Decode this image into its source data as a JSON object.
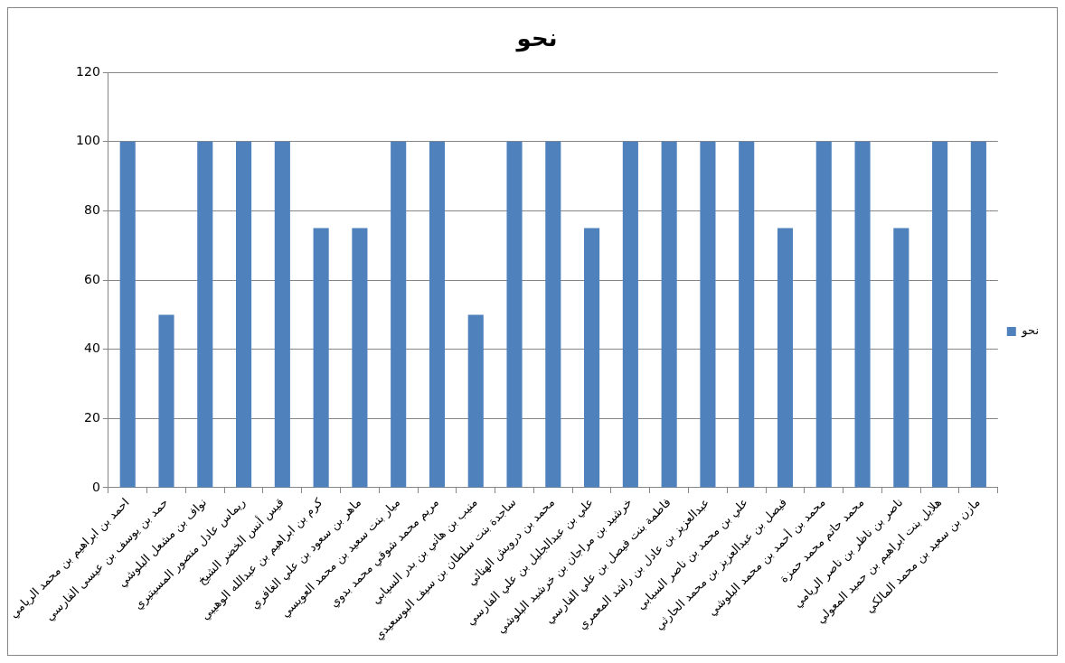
{
  "chart_data": {
    "type": "bar",
    "title": "نحو",
    "categories": [
      "احمد بن ابراهيم بن محمد الريامي",
      "حمد بن يوسف بن عيسى الفارسي",
      "نواف بن مشعل البلوشي",
      "ريماس عادل منصور المسيتيري",
      "قيس أنس الخضر الشيخ",
      "كرم بن ابراهيم بن عبدالله الوهيبي",
      "ماهر بن سعود بن علي الغافري",
      "ميار بنت سعيد بن محمد العويسي",
      "مريم محمد شوقي محمد بدوي",
      "منيب بن هاني بن بدر السيابي",
      "ساجدة بنت سلطان بن سيف البوسعيدي",
      "محمد بن درويش الهنائي",
      "علي بن عبدالجليل بن علي الفارسي",
      "خرشيد بن مراجان بن خرشيد البلوشي",
      "فاطمة بنت فيصل بن علي الفارسي",
      "عبدالعزيز بن عادل بن راشد المعمري",
      "علي بن محمد بن ناصر السيابي",
      "فيصل بن عبدالعزيز بن محمد الحارثي",
      "محمد بن أحمد بن محمد البلوشي",
      "محمد حاتم محمد حمزة",
      "ناصر بن ناظر بن ناصر الريامي",
      "هلايل بنت ابراهيم بن حميد المعولي",
      "مازن بن سعيد بن محمد المالكي"
    ],
    "series": [
      {
        "name": "نحو",
        "color": "#4f81bd",
        "values": [
          100,
          50,
          100,
          100,
          100,
          75,
          75,
          100,
          100,
          50,
          100,
          100,
          75,
          100,
          100,
          100,
          100,
          75,
          100,
          100,
          75,
          100,
          100
        ]
      }
    ],
    "ylim": [
      0,
      120
    ],
    "yticks": [
      0,
      20,
      40,
      60,
      80,
      100,
      120
    ],
    "grid": "y",
    "legend": "right"
  }
}
